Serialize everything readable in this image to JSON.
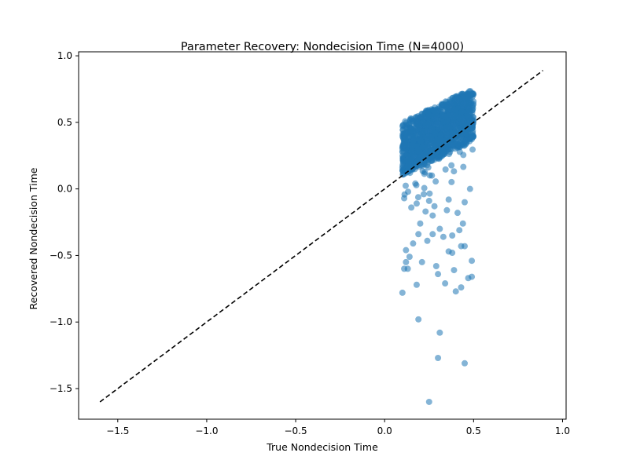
{
  "chart_data": {
    "type": "scatter",
    "title": "Parameter Recovery: Nondecision Time (N=4000)",
    "xlabel": "True Nondecision Time",
    "ylabel": "Recovered Nondecision Time",
    "xlim": [
      -1.72,
      1.02
    ],
    "ylim": [
      -1.73,
      1.03
    ],
    "xticks": [
      -1.5,
      -1.0,
      -0.5,
      0.0,
      0.5,
      1.0
    ],
    "yticks": [
      -1.5,
      -1.0,
      -0.5,
      0.0,
      0.5,
      1.0
    ],
    "grid": false,
    "point_color": "#1f77b4",
    "point_alpha": 0.55,
    "identity_line": {
      "from": [
        -1.6,
        -1.6
      ],
      "to": [
        0.89,
        0.89
      ],
      "style": "dashed",
      "color": "#000000"
    },
    "cluster": {
      "n": 4000,
      "true_range": [
        0.1,
        0.5
      ],
      "recovered_center_at_true_0.1": 0.3,
      "recovered_center_at_true_0.5": 0.56,
      "recovered_spread": 0.2
    },
    "outliers": [
      [
        0.1,
        -0.78
      ],
      [
        0.11,
        -0.6
      ],
      [
        0.12,
        -0.55
      ],
      [
        0.13,
        -0.6
      ],
      [
        0.12,
        -0.46
      ],
      [
        0.14,
        -0.51
      ],
      [
        0.16,
        -0.41
      ],
      [
        0.18,
        -0.72
      ],
      [
        0.19,
        -0.34
      ],
      [
        0.21,
        -0.55
      ],
      [
        0.24,
        -0.39
      ],
      [
        0.27,
        -0.34
      ],
      [
        0.29,
        -0.58
      ],
      [
        0.3,
        -0.64
      ],
      [
        0.34,
        -0.71
      ],
      [
        0.36,
        -0.47
      ],
      [
        0.38,
        -0.48
      ],
      [
        0.39,
        -0.61
      ],
      [
        0.4,
        -0.77
      ],
      [
        0.43,
        -0.74
      ],
      [
        0.43,
        -0.43
      ],
      [
        0.45,
        -0.43
      ],
      [
        0.47,
        -0.67
      ],
      [
        0.49,
        -0.66
      ],
      [
        0.49,
        -0.54
      ],
      [
        0.31,
        -0.3
      ],
      [
        0.33,
        -0.36
      ],
      [
        0.38,
        -0.35
      ],
      [
        0.42,
        -0.31
      ],
      [
        0.44,
        -0.26
      ],
      [
        0.35,
        -0.16
      ],
      [
        0.41,
        -0.18
      ],
      [
        0.45,
        -0.1
      ],
      [
        0.2,
        -0.26
      ],
      [
        0.23,
        -0.17
      ],
      [
        0.27,
        -0.2
      ],
      [
        0.15,
        -0.14
      ],
      [
        0.18,
        -0.11
      ],
      [
        0.28,
        -0.13
      ],
      [
        0.36,
        -0.08
      ],
      [
        0.11,
        -0.07
      ],
      [
        0.22,
        -0.04
      ],
      [
        0.48,
        0.0
      ],
      [
        0.25,
        -0.09
      ],
      [
        0.19,
        -0.98
      ],
      [
        0.31,
        -1.08
      ],
      [
        0.3,
        -1.27
      ],
      [
        0.45,
        -1.31
      ],
      [
        0.25,
        -1.6
      ]
    ]
  }
}
